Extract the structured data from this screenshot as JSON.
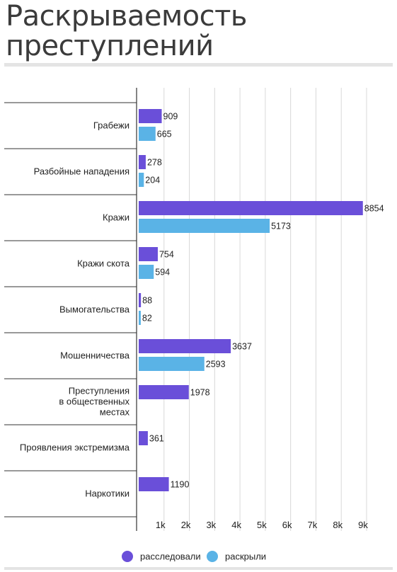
{
  "title": "Раскрываемость преступлений",
  "colors": {
    "series1": "#6a4fd9",
    "series2": "#5ab3e6",
    "grid": "#d8d8d8"
  },
  "chart_data": {
    "type": "bar",
    "orientation": "horizontal",
    "title": "Раскрываемость преступлений",
    "categories": [
      "Грабежи",
      "Разбойные нападения",
      "Кражи",
      "Кражи скота",
      "Вымогательства",
      "Мошенничества",
      "Преступления в общественных местах",
      "Проявления экстремизма",
      "Наркотики"
    ],
    "series": [
      {
        "name": "расследовали",
        "values": [
          909,
          278,
          8854,
          754,
          88,
          3637,
          1978,
          361,
          1190
        ]
      },
      {
        "name": "раскрыли",
        "values": [
          665,
          204,
          5173,
          594,
          82,
          2593,
          null,
          null,
          null
        ]
      }
    ],
    "xlim": [
      0,
      9000
    ],
    "ticks": [
      1000,
      2000,
      3000,
      4000,
      5000,
      6000,
      7000,
      8000,
      9000
    ],
    "tick_labels": [
      "1k",
      "2k",
      "3k",
      "4k",
      "5k",
      "6k",
      "7k",
      "8k",
      "9k"
    ],
    "grid": true,
    "legend": "bottom"
  }
}
